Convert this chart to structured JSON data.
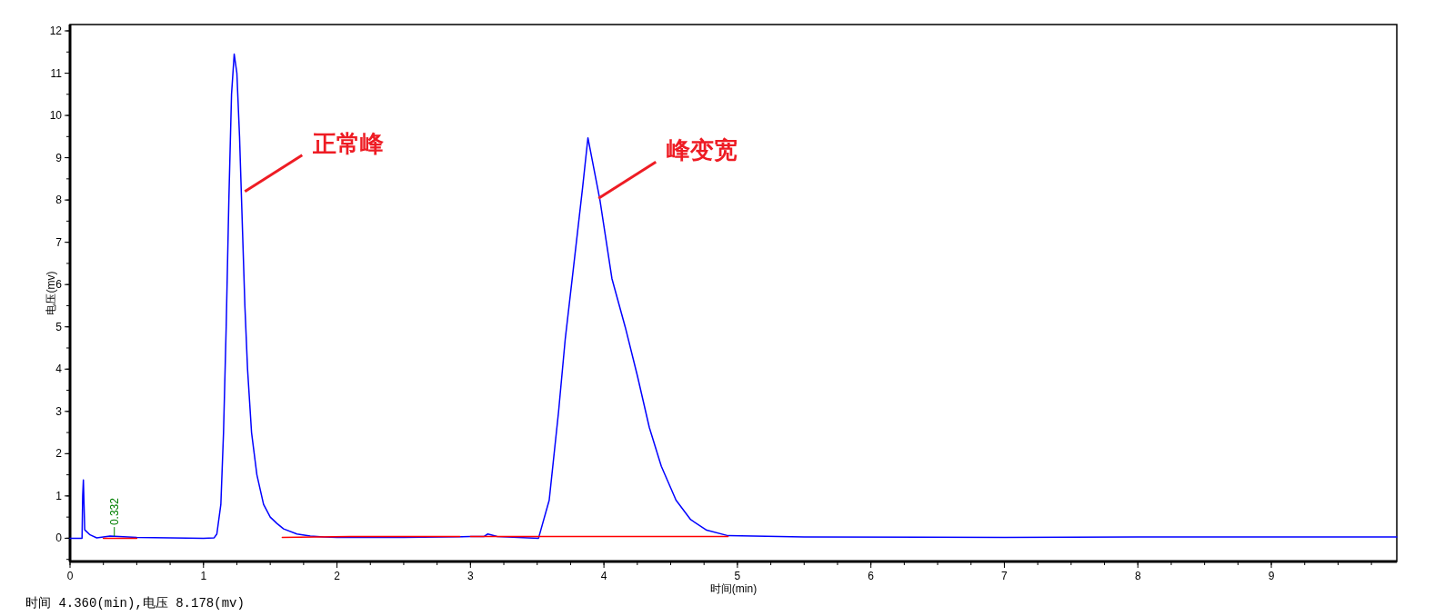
{
  "chart_data": {
    "type": "line",
    "xlabel": "时间(min)",
    "ylabel": "电压(mv)",
    "xlim": [
      0,
      9.94
    ],
    "ylim": [
      -0.55,
      12.15
    ],
    "xticks": [
      0,
      1,
      2,
      3,
      4,
      5,
      6,
      7,
      8,
      9
    ],
    "yticks": [
      0,
      1,
      2,
      3,
      4,
      5,
      6,
      7,
      8,
      9,
      10,
      11,
      12
    ],
    "series": [
      {
        "color": "#0000ff",
        "x": [
          0,
          0.09,
          0.095,
          0.1,
          0.105,
          0.11,
          0.15,
          0.2,
          0.3,
          0.5,
          1.0,
          1.08,
          1.1,
          1.13,
          1.15,
          1.17,
          1.19,
          1.21,
          1.23,
          1.25,
          1.27,
          1.29,
          1.31,
          1.33,
          1.36,
          1.4,
          1.45,
          1.5,
          1.55,
          1.6,
          1.7,
          1.8,
          1.9,
          2.0,
          2.5,
          3.0,
          3.1,
          3.13,
          3.2,
          3.51,
          3.59,
          3.66,
          3.71,
          3.77,
          3.84,
          3.88,
          3.97,
          4.06,
          4.16,
          4.25,
          4.34,
          4.43,
          4.54,
          4.65,
          4.77,
          4.93,
          5.5,
          7.0,
          8.0,
          9.94
        ],
        "values": [
          0,
          0,
          1.0,
          1.38,
          0.8,
          0.2,
          0.08,
          0.01,
          0.05,
          0.02,
          0,
          0.01,
          0.1,
          0.8,
          2.5,
          5,
          8,
          10.5,
          11.45,
          11.0,
          9.5,
          7.5,
          5.5,
          4.0,
          2.5,
          1.5,
          0.8,
          0.5,
          0.35,
          0.22,
          0.1,
          0.05,
          0.03,
          0.02,
          0.02,
          0.04,
          0.04,
          0.1,
          0.04,
          0,
          0.9,
          2.99,
          4.71,
          6.35,
          8.29,
          9.47,
          8.0,
          6.14,
          4.99,
          3.85,
          2.62,
          1.7,
          0.9,
          0.44,
          0.19,
          0.06,
          0.03,
          0.02,
          0.03,
          0.03
        ]
      },
      {
        "color": "#ff0000",
        "x": [
          0.25,
          0.5
        ],
        "values": [
          0,
          0
        ]
      },
      {
        "color": "#ff0000",
        "x": [
          1.59,
          2.1,
          2.92
        ],
        "values": [
          0.02,
          0.04,
          0.04
        ]
      },
      {
        "color": "#ff0000",
        "x": [
          3.0,
          4.93
        ],
        "values": [
          0.04,
          0.04
        ]
      }
    ],
    "annotations": [
      {
        "text": "0.332",
        "x": 0.332,
        "y": 0.05
      },
      {
        "text": "正常峰",
        "x": 1.31,
        "y": 8.2
      },
      {
        "text": "峰变宽",
        "x": 3.96,
        "y": 8.04
      },
      "时间 4.360(min),电压 8.178(mv)"
    ]
  }
}
